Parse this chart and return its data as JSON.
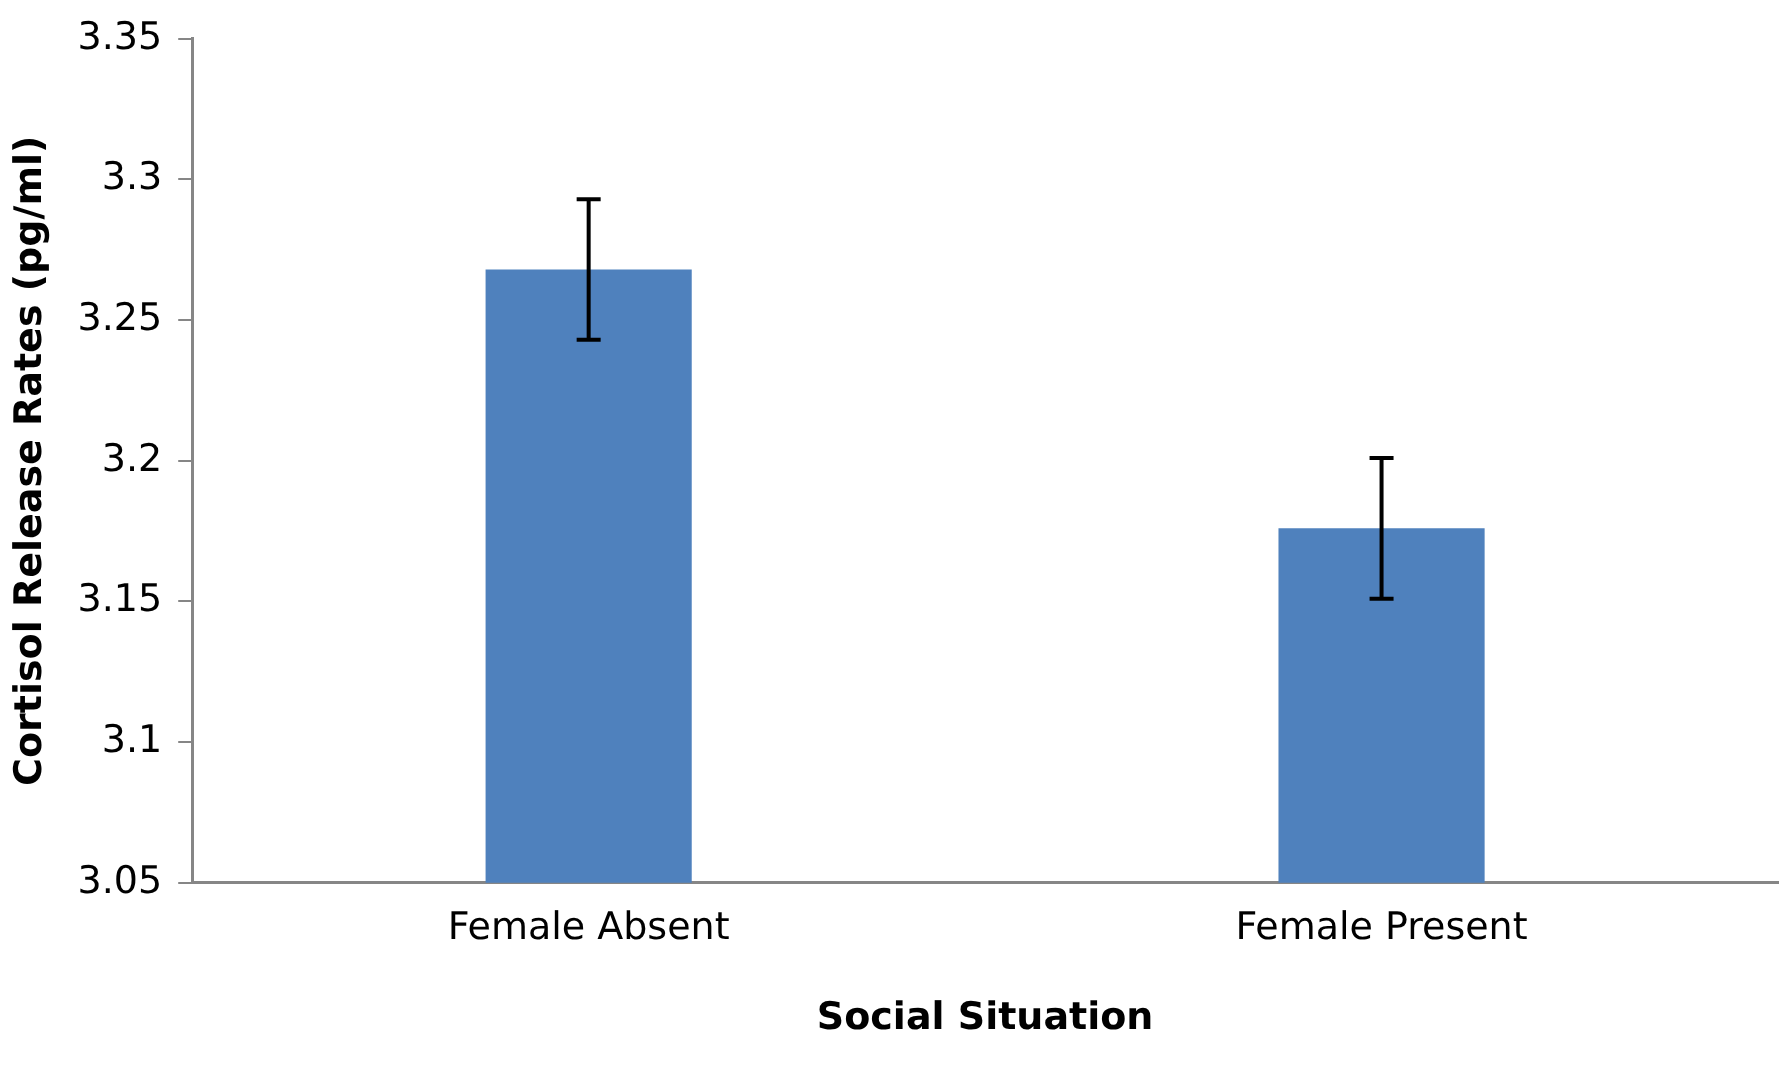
{
  "chart_data": {
    "type": "bar",
    "xlabel": "Social Situation",
    "ylabel": "Cortisol Release Rates (pg/ml)",
    "categories": [
      "Female Absent",
      "Female Present"
    ],
    "values": [
      3.268,
      3.176
    ],
    "errors": [
      0.025,
      0.025
    ],
    "color": "#4f81bd",
    "ylim": [
      3.05,
      3.35
    ],
    "yticks": [
      {
        "value": 3.05,
        "label": "3.05"
      },
      {
        "value": 3.1,
        "label": "3.1"
      },
      {
        "value": 3.15,
        "label": "3.15"
      },
      {
        "value": 3.2,
        "label": "3.2"
      },
      {
        "value": 3.25,
        "label": "3.25"
      },
      {
        "value": 3.3,
        "label": "3.3"
      },
      {
        "value": 3.35,
        "label": "3.35"
      }
    ],
    "grid": false,
    "legend": false
  }
}
